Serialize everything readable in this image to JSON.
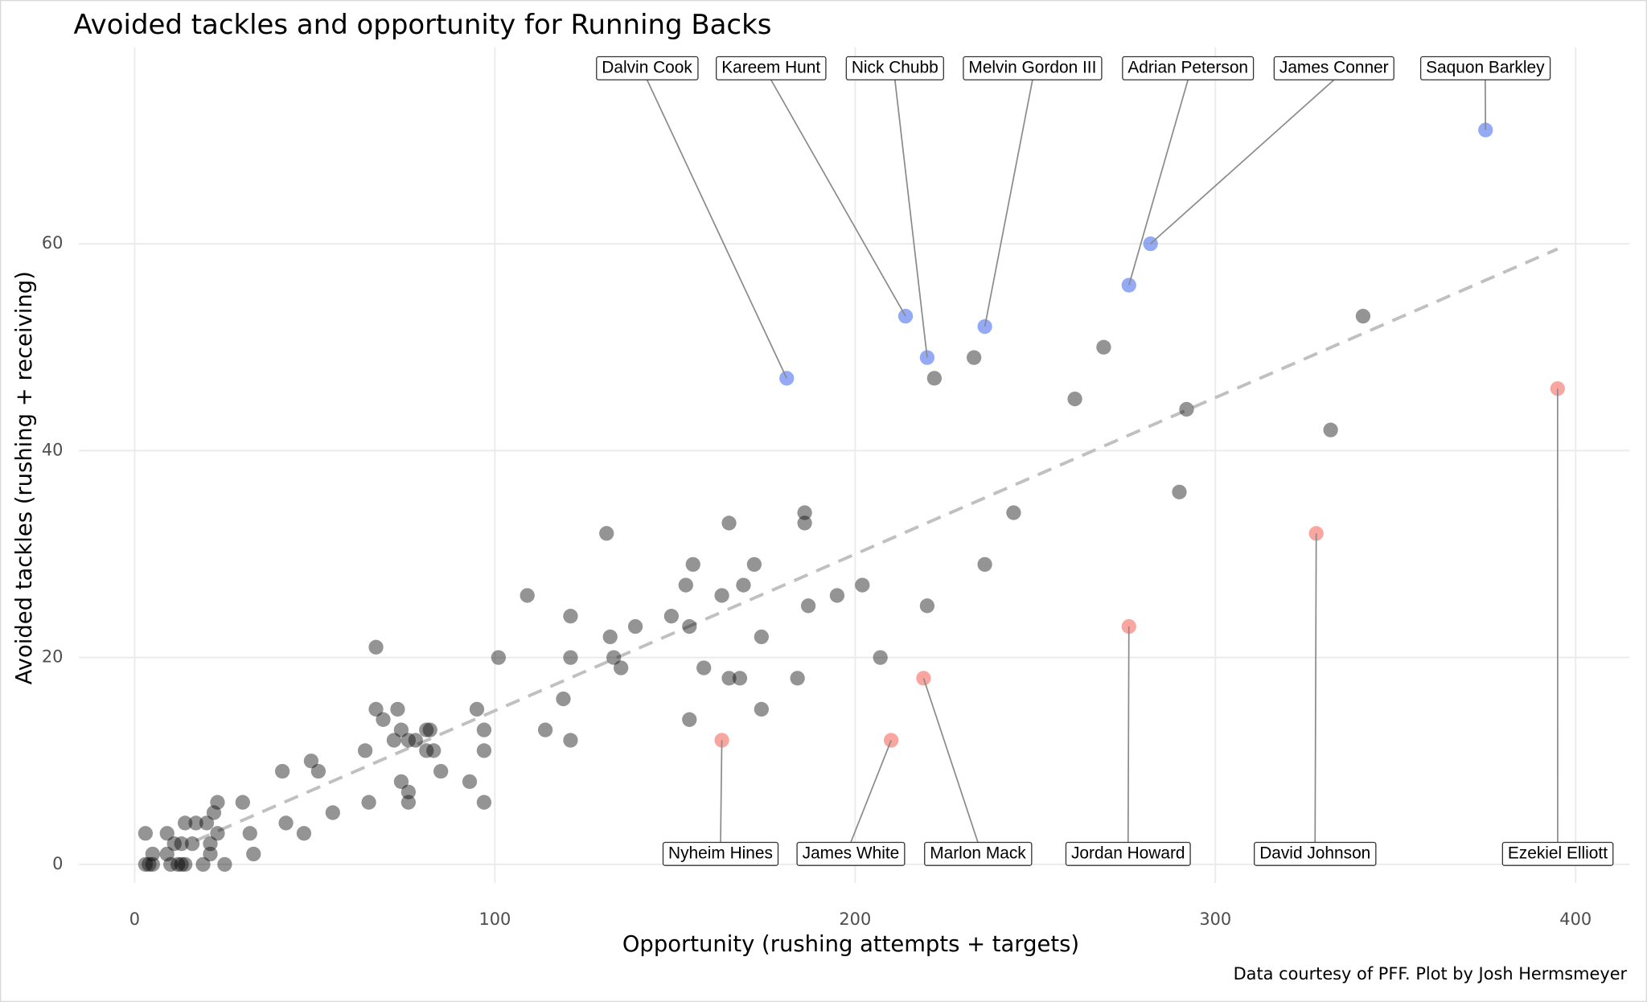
{
  "chart_data": {
    "type": "scatter",
    "title": "Avoided tackles and opportunity for Running Backs",
    "x_label": "Opportunity (rushing attempts + targets)",
    "y_label": "Avoided tackles (rushing + receiving)",
    "caption": "Data courtesy of PFF. Plot by Josh Hermsmeyer",
    "xlim": [
      -15.5,
      415
    ],
    "ylim": [
      -1.8,
      79
    ],
    "xticks": [
      0,
      100,
      200,
      300,
      400
    ],
    "yticks": [
      0,
      20,
      40,
      60
    ],
    "grid": true,
    "trend_line": {
      "color": "#c0c0c0",
      "x": [
        17,
        395
      ],
      "y": [
        2.3,
        59.5
      ]
    },
    "series": [
      {
        "color": "#000000",
        "x": [
          222,
          233,
          261,
          269,
          292,
          341,
          332,
          290,
          244,
          236,
          220,
          207,
          202,
          195,
          186,
          186,
          187,
          184,
          174,
          174,
          172,
          169,
          168,
          165,
          165,
          163,
          158,
          155,
          154,
          153,
          154,
          149,
          139,
          133,
          135,
          132,
          131,
          121,
          121,
          119,
          121,
          114,
          109,
          101,
          97,
          97,
          97,
          95,
          93,
          85,
          83,
          82,
          81,
          81,
          78,
          76,
          76,
          76,
          74,
          74,
          73,
          72,
          69,
          67,
          67,
          65,
          64,
          55,
          51,
          49,
          47,
          42,
          41,
          33,
          32,
          30,
          25,
          23,
          23,
          22,
          21,
          21,
          20,
          19,
          17,
          16,
          14,
          14,
          13,
          12,
          11,
          10,
          9,
          9,
          5,
          5,
          4,
          3,
          3,
          13
        ],
        "values": [
          47,
          49,
          45,
          50,
          44,
          53,
          42,
          36,
          34,
          29,
          25,
          20,
          27,
          26,
          34,
          33,
          25,
          18,
          22,
          15,
          29,
          27,
          18,
          18,
          33,
          26,
          19,
          29,
          23,
          27,
          14,
          24,
          23,
          20,
          19,
          22,
          32,
          24,
          20,
          16,
          12,
          13,
          26,
          20,
          13,
          11,
          6,
          15,
          8,
          9,
          11,
          13,
          13,
          11,
          12,
          12,
          7,
          6,
          13,
          8,
          15,
          12,
          14,
          15,
          21,
          6,
          11,
          5,
          9,
          10,
          3,
          4,
          9,
          1,
          3,
          6,
          0,
          6,
          3,
          5,
          2,
          1,
          4,
          0,
          4,
          2,
          4,
          0,
          2,
          0,
          2,
          0,
          1,
          3,
          1,
          0,
          0,
          3,
          0,
          0
        ]
      },
      {
        "color": "#5b7cf0",
        "labels": [
          "Dalvin Cook",
          "Kareem Hunt",
          "Nick Chubb",
          "Melvin Gordon III",
          "Adrian Peterson",
          "James Conner",
          "Saquon Barkley"
        ],
        "x": [
          181,
          214,
          220,
          236,
          276,
          282,
          375
        ],
        "values": [
          47,
          53,
          49,
          52,
          56,
          60,
          71
        ]
      },
      {
        "color": "#f4776b",
        "labels": [
          "Nyheim Hines",
          "James White",
          "Marlon Mack",
          "Jordan Howard",
          "David Johnson",
          "Ezekiel Elliott"
        ],
        "x": [
          163,
          210,
          219,
          276,
          328,
          395
        ],
        "values": [
          12,
          12,
          18,
          23,
          32,
          46
        ]
      }
    ]
  }
}
